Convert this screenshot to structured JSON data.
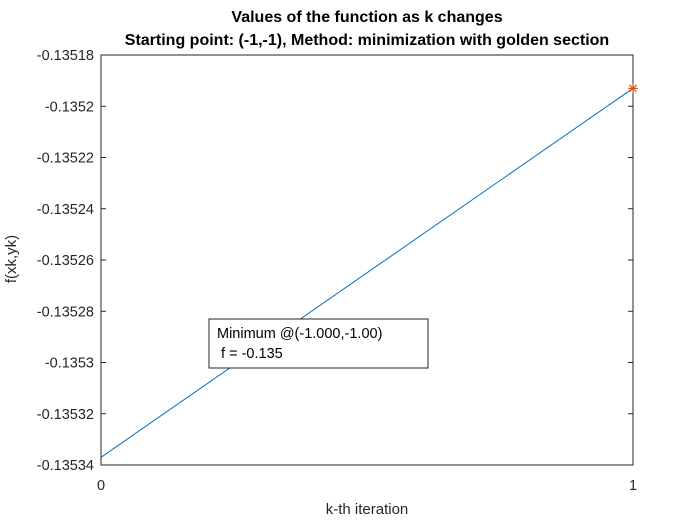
{
  "chart_data": {
    "type": "line",
    "title": "Values of the function as k changes",
    "subtitle": "Starting point: (-1,-1), Method: minimization with golden section",
    "xlabel": "k-th iteration",
    "ylabel": "f(xk,yk)",
    "xlim": [
      0,
      1
    ],
    "ylim": [
      -0.13534,
      -0.13518
    ],
    "x_ticks": [
      0,
      1
    ],
    "x_tick_labels": [
      "0",
      "1"
    ],
    "y_ticks": [
      -0.13534,
      -0.13532,
      -0.1353,
      -0.13528,
      -0.13526,
      -0.13524,
      -0.13522,
      -0.1352,
      -0.13518
    ],
    "y_tick_labels": [
      "-0.13534",
      "-0.13532",
      "-0.1353",
      "-0.13528",
      "-0.13526",
      "-0.13524",
      "-0.13522",
      "-0.1352",
      "-0.13518"
    ],
    "grid": false,
    "series": [
      {
        "x": [
          0,
          1
        ],
        "values": [
          -0.135337,
          -0.135193
        ],
        "color": "#0072BD"
      }
    ],
    "markers": [
      {
        "x": 1,
        "y": -0.135193,
        "symbol": "*",
        "color": "#D95319"
      }
    ],
    "annotation": {
      "lines": [
        "Minimum @(-1.000,-1.00)",
        " f = -0.135"
      ]
    }
  }
}
